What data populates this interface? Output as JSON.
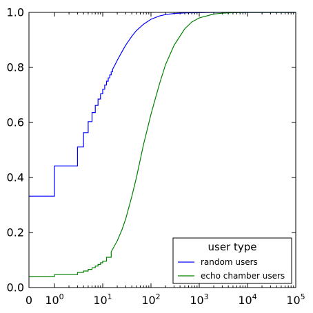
{
  "chart_data": {
    "type": "line",
    "title": "",
    "xlabel": "",
    "ylabel": "",
    "x_scale": "symlog",
    "x_ticks": [
      {
        "value": 0,
        "label": "0"
      },
      {
        "value": 1,
        "base": "10",
        "exp": "0"
      },
      {
        "value": 10,
        "base": "10",
        "exp": "1"
      },
      {
        "value": 100,
        "base": "10",
        "exp": "2"
      },
      {
        "value": 1000,
        "base": "10",
        "exp": "3"
      },
      {
        "value": 10000,
        "base": "10",
        "exp": "4"
      },
      {
        "value": 100000,
        "base": "10",
        "exp": "5"
      }
    ],
    "y_ticks": [
      "0.0",
      "0.2",
      "0.4",
      "0.6",
      "0.8",
      "1.0"
    ],
    "xlim": [
      0,
      100000
    ],
    "ylim": [
      0.0,
      1.0
    ],
    "grid": false,
    "legend": {
      "title": "user type",
      "placement": "lower-right",
      "entries": [
        {
          "label": "random users",
          "color": "#0000ff"
        },
        {
          "label": "echo chamber users",
          "color": "#008000"
        }
      ]
    },
    "series": [
      {
        "name": "random users",
        "color": "#0000ff",
        "step": true,
        "points": [
          [
            0,
            0.332
          ],
          [
            1,
            0.442
          ],
          [
            3,
            0.511
          ],
          [
            4,
            0.563
          ],
          [
            5,
            0.603
          ],
          [
            6,
            0.636
          ],
          [
            7,
            0.662
          ],
          [
            8,
            0.685
          ],
          [
            9,
            0.704
          ],
          [
            10,
            0.721
          ],
          [
            11,
            0.736
          ],
          [
            12,
            0.75
          ],
          [
            13,
            0.762
          ],
          [
            14,
            0.773
          ],
          [
            15,
            0.784
          ],
          [
            16,
            0.793
          ],
          [
            18,
            0.81
          ],
          [
            20,
            0.826
          ],
          [
            25,
            0.857
          ],
          [
            30,
            0.881
          ],
          [
            40,
            0.913
          ],
          [
            50,
            0.934
          ],
          [
            70,
            0.957
          ],
          [
            100,
            0.975
          ],
          [
            150,
            0.987
          ],
          [
            200,
            0.992
          ],
          [
            300,
            0.996
          ],
          [
            500,
            0.998
          ],
          [
            1000,
            0.999
          ],
          [
            2000,
            1.0
          ]
        ]
      },
      {
        "name": "echo chamber users",
        "color": "#008000",
        "step": true,
        "points": [
          [
            0,
            0.04
          ],
          [
            1,
            0.047
          ],
          [
            3,
            0.055
          ],
          [
            4,
            0.06
          ],
          [
            5,
            0.066
          ],
          [
            6,
            0.072
          ],
          [
            7,
            0.078
          ],
          [
            8,
            0.084
          ],
          [
            9,
            0.09
          ],
          [
            10,
            0.096
          ],
          [
            12,
            0.11
          ],
          [
            15,
            0.13
          ],
          [
            20,
            0.17
          ],
          [
            25,
            0.21
          ],
          [
            30,
            0.25
          ],
          [
            40,
            0.33
          ],
          [
            50,
            0.4
          ],
          [
            70,
            0.52
          ],
          [
            100,
            0.63
          ],
          [
            150,
            0.74
          ],
          [
            200,
            0.81
          ],
          [
            300,
            0.88
          ],
          [
            500,
            0.94
          ],
          [
            700,
            0.965
          ],
          [
            1000,
            0.98
          ],
          [
            2000,
            0.994
          ],
          [
            3000,
            0.997
          ],
          [
            5000,
            0.999
          ],
          [
            10000,
            1.0
          ],
          [
            40000,
            1.0
          ]
        ]
      }
    ]
  }
}
